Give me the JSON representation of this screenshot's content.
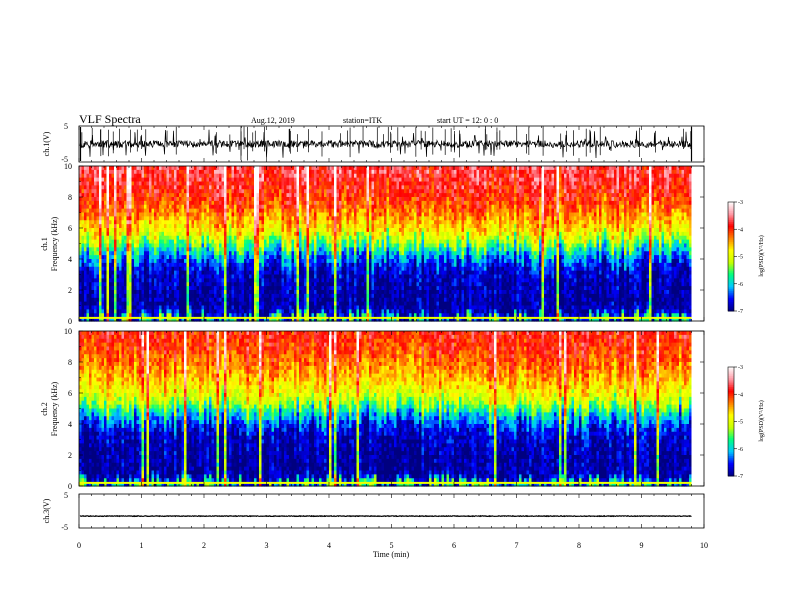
{
  "header": {
    "title": "VLF Spectra",
    "date": "Aug.12, 2019",
    "station": "station=ITK",
    "start": "start  UT  =   12: 0  : 0"
  },
  "chart_data": [
    {
      "type": "line",
      "name": "ch1-waveform",
      "ylabel": "ch.1(V)",
      "xlim": [
        0,
        10
      ],
      "ylim": [
        -5,
        5
      ],
      "yticks": [
        "5",
        "-5"
      ],
      "trace": {
        "baseline": 0.0,
        "typical_amplitude": 1.0,
        "spike_amplitude": 5.0,
        "data_end_min": 9.8
      }
    },
    {
      "type": "heatmap",
      "name": "ch1-spectrogram",
      "ylabel": [
        "ch.1",
        "Frequency  (kHz)"
      ],
      "xlim": [
        0,
        10
      ],
      "ylim": [
        0,
        10
      ],
      "yticks": [
        "0",
        "2",
        "4",
        "6",
        "8",
        "10"
      ],
      "data_end_min": 9.8,
      "log_psd_profile": {
        "freq_khz": [
          0,
          0.3,
          0.6,
          2,
          3.5,
          4.5,
          5.5,
          7,
          8.5,
          10
        ],
        "log_psd": [
          -5.5,
          -6.6,
          -6.9,
          -6.9,
          -6.7,
          -6.0,
          -5.0,
          -4.3,
          -3.9,
          -3.7
        ]
      },
      "colorbar": {
        "label": "log(PSD)(V²/Hz)",
        "min": -7,
        "max": -3,
        "ticks": [
          "-3",
          "-4",
          "-5",
          "-6",
          "-7"
        ]
      }
    },
    {
      "type": "heatmap",
      "name": "ch2-spectrogram",
      "ylabel": [
        "ch.2",
        "Frequency  (kHz)"
      ],
      "xlim": [
        0,
        10
      ],
      "ylim": [
        0,
        10
      ],
      "yticks": [
        "0",
        "2",
        "4",
        "6",
        "8",
        "10"
      ],
      "data_end_min": 9.8,
      "log_psd_profile": {
        "freq_khz": [
          0,
          0.3,
          0.6,
          2,
          3.5,
          4.5,
          5.5,
          7,
          8.5,
          10
        ],
        "log_psd": [
          -5.5,
          -6.6,
          -6.9,
          -6.9,
          -6.7,
          -6.1,
          -5.1,
          -4.5,
          -4.1,
          -3.9
        ]
      },
      "colorbar": {
        "label": "log(PSD)(V²/Hz)",
        "min": -7,
        "max": -3,
        "ticks": [
          "-3",
          "-4",
          "-5",
          "-6",
          "-7"
        ]
      }
    },
    {
      "type": "line",
      "name": "ch3-waveform",
      "ylabel": "ch.3(V)",
      "xlabel": "Time  (min)",
      "xlim": [
        0,
        10
      ],
      "ylim": [
        -5,
        5
      ],
      "yticks": [
        "5",
        "-5"
      ],
      "xticks": [
        "0",
        "1",
        "2",
        "3",
        "4",
        "5",
        "6",
        "7",
        "8",
        "9",
        "10"
      ],
      "trace": {
        "baseline": -1.5,
        "typical_amplitude": 0.1,
        "data_end_min": 9.8
      }
    }
  ],
  "colors": {
    "colormap": [
      "#000080",
      "#0000ff",
      "#00c8ff",
      "#00ff80",
      "#c8ff00",
      "#ffff00",
      "#ff8000",
      "#ff0000",
      "#ff9ca8",
      "#ffffff"
    ]
  }
}
